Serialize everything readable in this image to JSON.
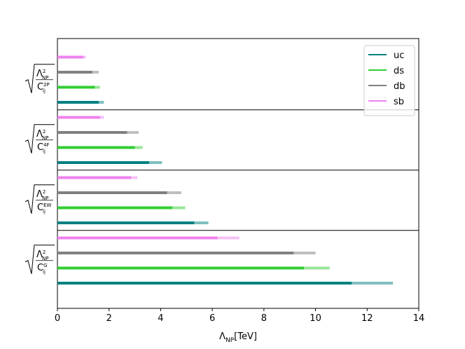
{
  "chart_data": {
    "type": "hbar_range",
    "categories": [
      {
        "num": "Λ",
        "num_sup": "2",
        "num_sub": "NP",
        "den": "C",
        "den_sup": "G",
        "den_sub": "ij"
      },
      {
        "num": "Λ",
        "num_sup": "2",
        "num_sub": "NP",
        "den": "C",
        "den_sup": "EW",
        "den_sub": "ij"
      },
      {
        "num": "Λ",
        "num_sup": "2",
        "num_sub": "NP",
        "den": "C",
        "den_sup": "4F",
        "den_sub": "ij"
      },
      {
        "num": "Λ",
        "num_sup": "2",
        "num_sub": "NP",
        "den": "C",
        "den_sup": "2P",
        "den_sub": "ij"
      }
    ],
    "series": [
      {
        "name": "uc",
        "color": "#008080",
        "values": [
          11.4,
          5.3,
          3.55,
          1.6
        ],
        "upper": [
          13.0,
          5.85,
          4.05,
          1.8
        ]
      },
      {
        "name": "ds",
        "color": "#32cd32",
        "values": [
          9.55,
          4.45,
          3.0,
          1.45
        ],
        "upper": [
          10.55,
          4.95,
          3.3,
          1.65
        ]
      },
      {
        "name": "db",
        "color": "#808080",
        "values": [
          9.15,
          4.25,
          2.7,
          1.35
        ],
        "upper": [
          10.0,
          4.8,
          3.15,
          1.6
        ]
      },
      {
        "name": "sb",
        "color": "#ee82ee",
        "values": [
          6.2,
          2.85,
          1.65,
          1.0
        ],
        "upper": [
          7.05,
          3.1,
          1.8,
          1.1
        ]
      }
    ],
    "xlabel": {
      "main": "Λ",
      "sub": "NP",
      "unit": "[TeV]"
    },
    "xlim": [
      0,
      14
    ],
    "xticks": [
      0,
      2,
      4,
      6,
      8,
      10,
      12,
      14
    ],
    "legend": "upper right"
  }
}
